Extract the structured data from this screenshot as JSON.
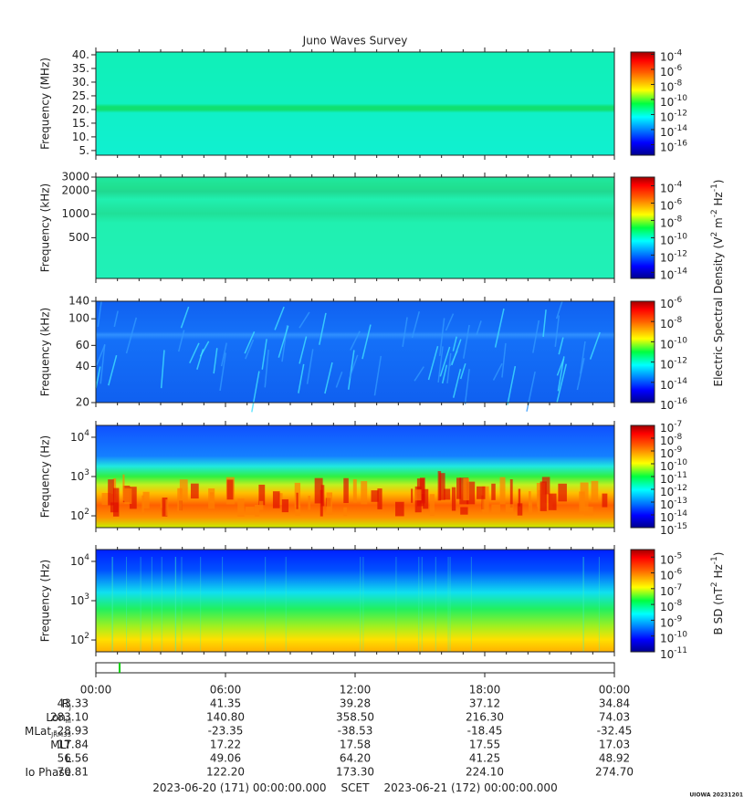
{
  "title": "Juno Waves Survey",
  "panels": [
    {
      "ylabel": "Frequency (MHz)",
      "yscale": "linear",
      "ylim": [
        3.3,
        41
      ],
      "yticks": [
        {
          "value": 5,
          "label": "5."
        },
        {
          "value": 10,
          "label": "10."
        },
        {
          "value": 15,
          "label": "15."
        },
        {
          "value": 20,
          "label": "20."
        },
        {
          "value": 25,
          "label": "25."
        },
        {
          "value": 30,
          "label": "30."
        },
        {
          "value": 35,
          "label": "35."
        },
        {
          "value": 40,
          "label": "40."
        }
      ],
      "clim": [
        4e-18,
        0.0002
      ],
      "cticks": [
        {
          "value": 0.0001,
          "label": "10",
          "exponent": "-4"
        },
        {
          "value": 1e-06,
          "label": "10",
          "exponent": "-6"
        },
        {
          "value": 1e-08,
          "label": "10",
          "exponent": "-8"
        },
        {
          "value": 1e-10,
          "label": "10",
          "exponent": "-10"
        },
        {
          "value": 1e-12,
          "label": "10",
          "exponent": "-12"
        },
        {
          "value": 1e-14,
          "label": "10",
          "exponent": "-14"
        },
        {
          "value": 1e-16,
          "label": "10",
          "exponent": "-16"
        }
      ]
    },
    {
      "ylabel": "Frequency (kHz)",
      "yscale": "log",
      "ylim": [
        150,
        3000
      ],
      "yticks": [
        500,
        1000,
        2000,
        3000
      ],
      "clim": [
        2e-15,
        0.001
      ],
      "cticks": [
        {
          "value": 0.0001,
          "label": "10",
          "exponent": "-4"
        },
        {
          "value": 1e-06,
          "label": "10",
          "exponent": "-6"
        },
        {
          "value": 1e-08,
          "label": "10",
          "exponent": "-8"
        },
        {
          "value": 1e-10,
          "label": "10",
          "exponent": "-10"
        },
        {
          "value": 1e-12,
          "label": "10",
          "exponent": "-12"
        },
        {
          "value": 1e-14,
          "label": "10",
          "exponent": "-14"
        }
      ]
    },
    {
      "ylabel": "Frequency (kHz)",
      "yscale": "log",
      "ylim": [
        20,
        140
      ],
      "yticks": [
        20,
        40,
        60,
        100,
        140
      ],
      "clim": [
        1e-16,
        1e-06
      ],
      "cticks": [
        {
          "value": 1e-06,
          "label": "10",
          "exponent": "-6"
        },
        {
          "value": 1e-08,
          "label": "10",
          "exponent": "-8"
        },
        {
          "value": 1e-10,
          "label": "10",
          "exponent": "-10"
        },
        {
          "value": 1e-12,
          "label": "10",
          "exponent": "-12"
        },
        {
          "value": 1e-14,
          "label": "10",
          "exponent": "-14"
        },
        {
          "value": 1e-16,
          "label": "10",
          "exponent": "-16"
        }
      ]
    },
    {
      "ylabel": "Frequency (Hz)",
      "yscale": "log",
      "ylim": [
        50,
        20000
      ],
      "yticks": [
        {
          "value": 100,
          "label": "10",
          "exponent": "2"
        },
        {
          "value": 1000,
          "label": "10",
          "exponent": "3"
        },
        {
          "value": 10000,
          "label": "10",
          "exponent": "4"
        }
      ],
      "clim": [
        1e-15,
        1e-07
      ],
      "cticks": [
        {
          "value": 1e-07,
          "label": "10",
          "exponent": "-7"
        },
        {
          "value": 1e-08,
          "label": "10",
          "exponent": "-8"
        },
        {
          "value": 1e-09,
          "label": "10",
          "exponent": "-9"
        },
        {
          "value": 1e-10,
          "label": "10",
          "exponent": "-10"
        },
        {
          "value": 1e-11,
          "label": "10",
          "exponent": "-11"
        },
        {
          "value": 1e-12,
          "label": "10",
          "exponent": "-12"
        },
        {
          "value": 1e-13,
          "label": "10",
          "exponent": "-13"
        },
        {
          "value": 1e-14,
          "label": "10",
          "exponent": "-14"
        },
        {
          "value": 1e-15,
          "label": "10",
          "exponent": "-15"
        }
      ]
    },
    {
      "ylabel": "Frequency (Hz)",
      "yscale": "log",
      "ylim": [
        50,
        20000
      ],
      "yticks": [
        {
          "value": 100,
          "label": "10",
          "exponent": "2"
        },
        {
          "value": 1000,
          "label": "10",
          "exponent": "3"
        },
        {
          "value": 10000,
          "label": "10",
          "exponent": "4"
        }
      ],
      "clim": [
        1e-11,
        3e-05
      ],
      "cticks": [
        {
          "value": 1e-05,
          "label": "10",
          "exponent": "-5"
        },
        {
          "value": 1e-06,
          "label": "10",
          "exponent": "-6"
        },
        {
          "value": 1e-07,
          "label": "10",
          "exponent": "-7"
        },
        {
          "value": 1e-08,
          "label": "10",
          "exponent": "-8"
        },
        {
          "value": 1e-09,
          "label": "10",
          "exponent": "-9"
        },
        {
          "value": 1e-10,
          "label": "10",
          "exponent": "-10"
        },
        {
          "value": 1e-11,
          "label": "10",
          "exponent": "-11"
        }
      ]
    }
  ],
  "colorbar_labels": [
    {
      "parts": [
        {
          "text": "Electric Spectral Density (V"
        },
        {
          "text": "2",
          "sup": true
        },
        {
          "text": " m"
        },
        {
          "text": "-2",
          "sup": true
        },
        {
          "text": " Hz"
        },
        {
          "text": "-1",
          "sup": true
        },
        {
          "text": ")"
        }
      ]
    },
    {
      "parts": [
        {
          "text": "B SD (nT"
        },
        {
          "text": "2",
          "sup": true
        },
        {
          "text": " Hz"
        },
        {
          "text": "-1",
          "sup": true
        },
        {
          "text": ")"
        }
      ]
    }
  ],
  "time_axis": {
    "xlim": [
      0,
      24
    ],
    "xticks": [
      {
        "value": 0,
        "label": "00:00"
      },
      {
        "value": 6,
        "label": "06:00"
      },
      {
        "value": 12,
        "label": "12:00"
      },
      {
        "value": 18,
        "label": "18:00"
      },
      {
        "value": 24,
        "label": "00:00"
      }
    ]
  },
  "ephemeris": {
    "rows": [
      {
        "label": "R",
        "sub": "J",
        "values": [
          "43.33",
          "41.35",
          "39.28",
          "37.12",
          "34.84"
        ]
      },
      {
        "label": "Lon",
        "sub": "III",
        "values": [
          "283.10",
          "140.80",
          "358.50",
          "216.30",
          "74.03"
        ]
      },
      {
        "label": "MLat",
        "sub": "JRM33",
        "values": [
          "-28.93",
          "-23.35",
          "-38.53",
          "-18.45",
          "-32.45"
        ]
      },
      {
        "label": "MLT",
        "values": [
          "17.84",
          "17.22",
          "17.58",
          "17.55",
          "17.03"
        ]
      },
      {
        "label": "L",
        "values": [
          "56.56",
          "49.06",
          "64.20",
          "41.25",
          "48.92"
        ]
      },
      {
        "label": "Io Phase",
        "values": [
          "70.81",
          "122.20",
          "173.30",
          "224.10",
          "274.70"
        ]
      }
    ]
  },
  "footer": {
    "start": "2023-06-20 (171) 00:00:00.000",
    "label": "SCET",
    "end": "2023-06-21 (172) 00:00:00.000"
  },
  "credit": "UIOWA 20231201"
}
